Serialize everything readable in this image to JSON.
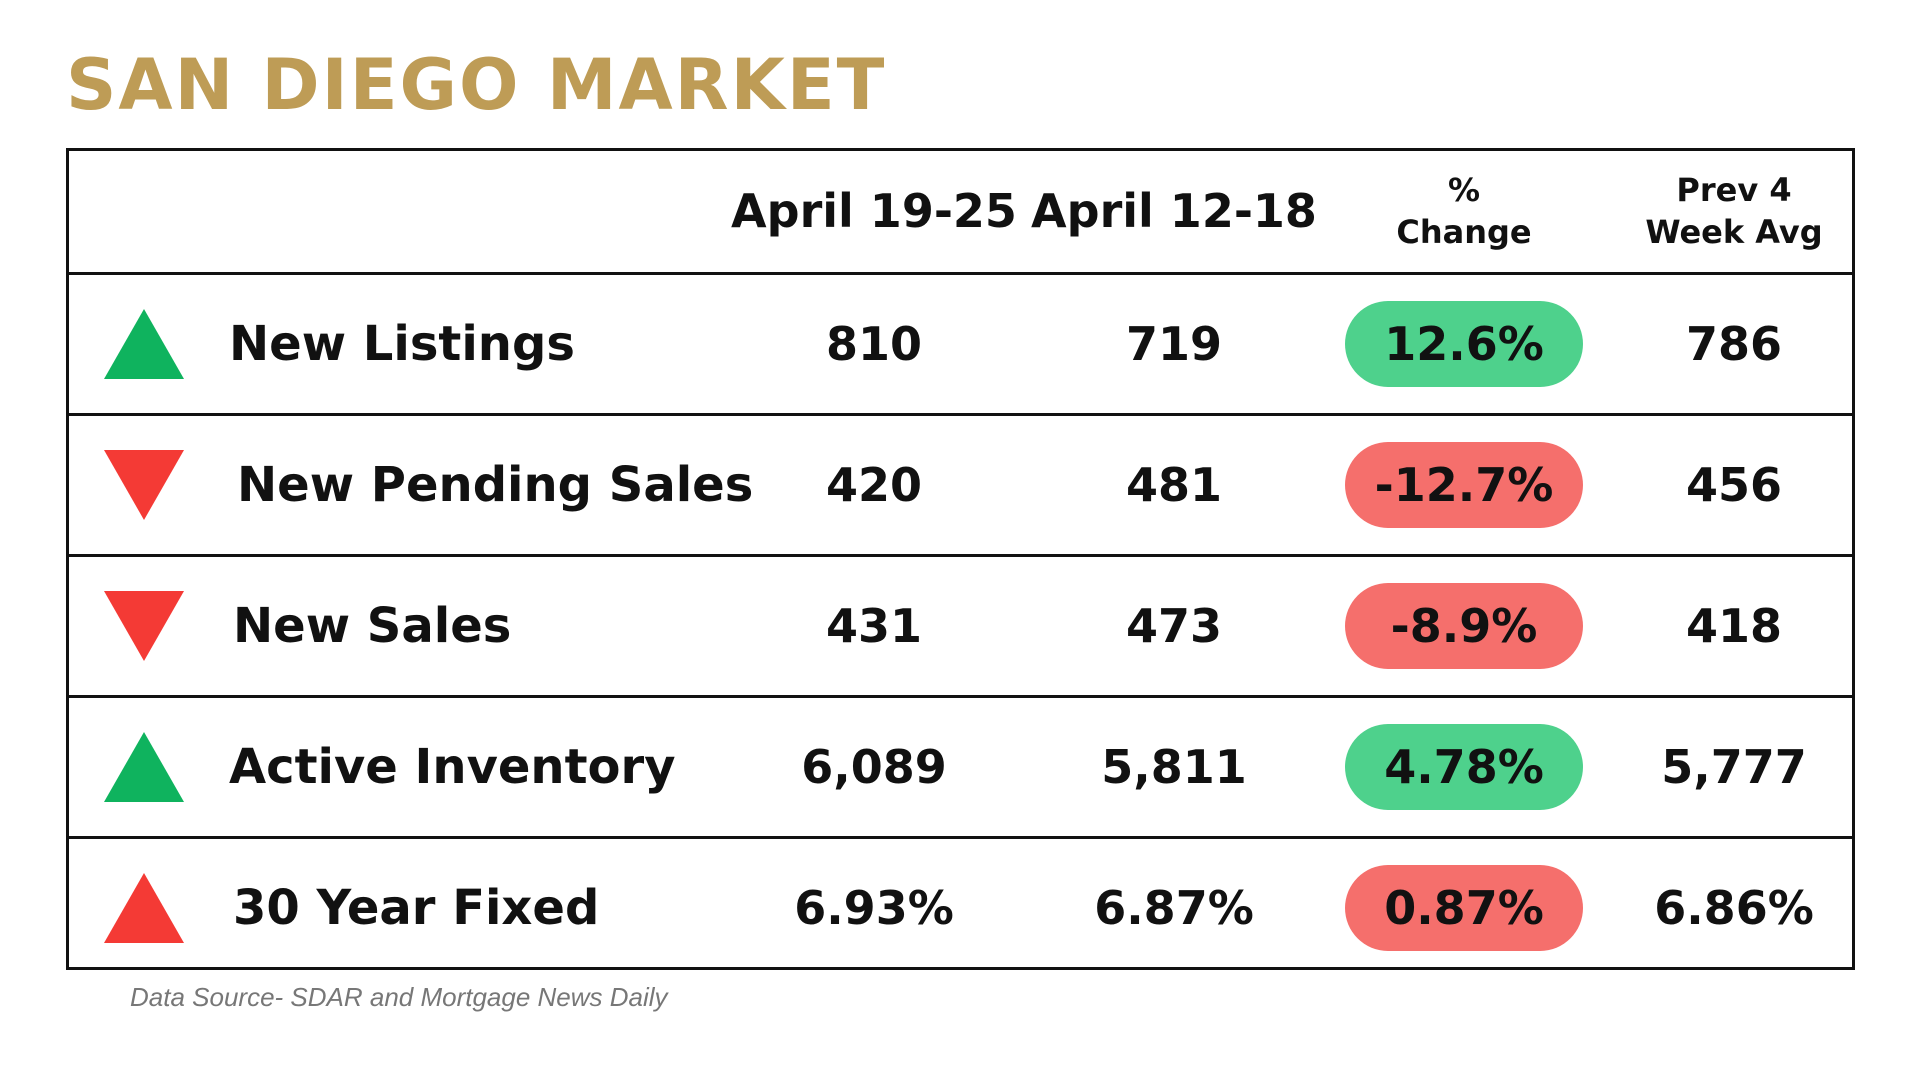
{
  "title": "SAN DIEGO MARKET",
  "colors": {
    "title": "#BE9C56",
    "positive": "#4ED18C",
    "negative": "#F56F6C",
    "arrow_up_green": "#0FB35E",
    "arrow_down_red": "#F43A35",
    "arrow_up_red": "#F43A35"
  },
  "header": {
    "col_a": "April 19-25",
    "col_b": "April 12-18",
    "col_c_line1": "%",
    "col_c_line2": "Change",
    "col_d_line1": "Prev 4",
    "col_d_line2": "Week Avg"
  },
  "rows": [
    {
      "icon": "triangle-up-icon",
      "icon_color": "#0FB35E",
      "label": "New Listings",
      "a": "810",
      "b": "719",
      "change": "12.6%",
      "change_color": "#4ED18C",
      "avg": "786"
    },
    {
      "icon": "triangle-down-icon",
      "icon_color": "#F43A35",
      "label": "New Pending Sales",
      "a": "420",
      "b": "481",
      "change": "-12.7%",
      "change_color": "#F56F6C",
      "avg": "456"
    },
    {
      "icon": "triangle-down-icon",
      "icon_color": "#F43A35",
      "label": "New Sales",
      "a": "431",
      "b": "473",
      "change": "-8.9%",
      "change_color": "#F56F6C",
      "avg": "418"
    },
    {
      "icon": "triangle-up-icon",
      "icon_color": "#0FB35E",
      "label": "Active Inventory",
      "a": "6,089",
      "b": "5,811",
      "change": "4.78%",
      "change_color": "#4ED18C",
      "avg": "5,777"
    },
    {
      "icon": "triangle-up-icon",
      "icon_color": "#F43A35",
      "label": "30 Year Fixed",
      "a": "6.93%",
      "b": "6.87%",
      "change": "0.87%",
      "change_color": "#F56F6C",
      "avg": "6.86%"
    }
  ],
  "source": "Data Source- SDAR and Mortgage News Daily"
}
